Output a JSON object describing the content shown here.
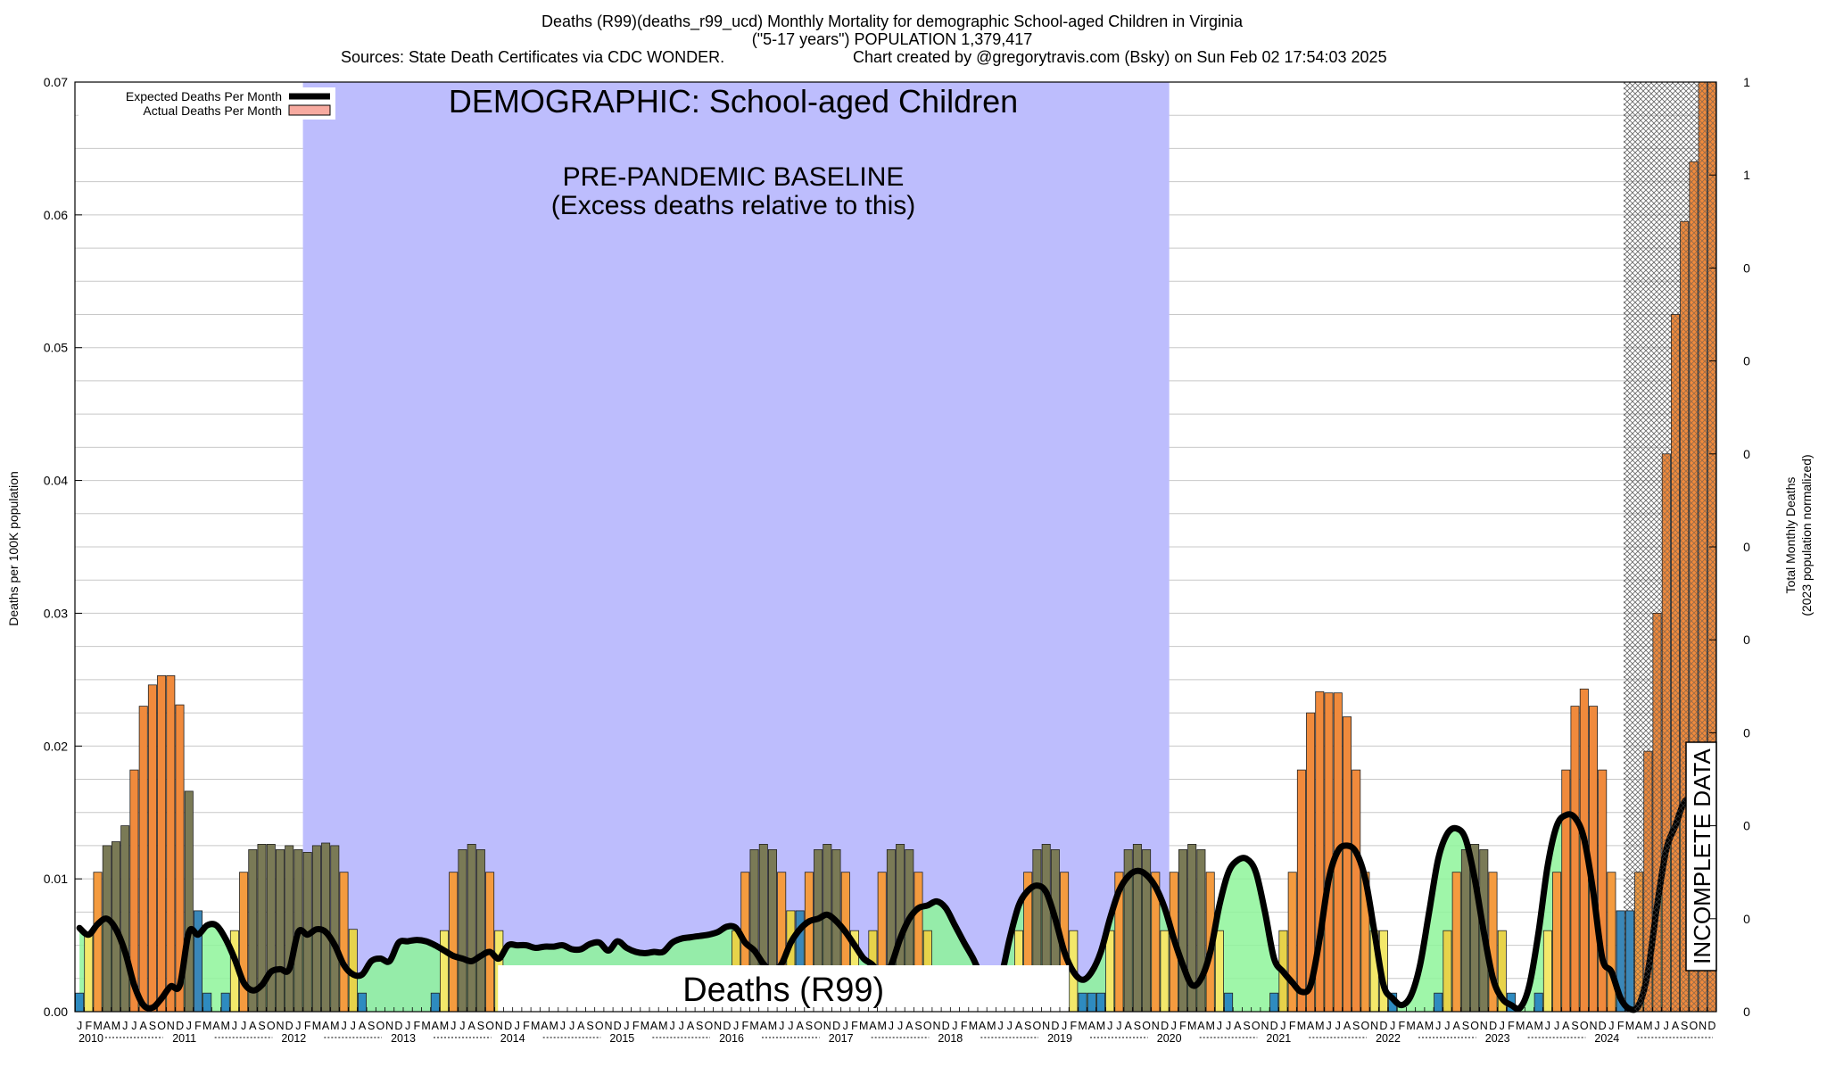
{
  "chart_data": {
    "type": "bar",
    "title_lines": [
      "Deaths (R99)(deaths_r99_ucd)  Monthly Mortality for demographic School-aged Children in Virginia",
      "(\"5-17 years\") POPULATION 1,379,417",
      "Sources: State Death Certificates via CDC WONDER.",
      "Chart created by @gregorytravis.com (Bsky) on Sun Feb 02 17:54:03 2025"
    ],
    "ylabel": "Deaths per 100K population",
    "y2label_lines": [
      "Total Monthly Deaths",
      "(2023 population normalized)"
    ],
    "ylim": [
      0,
      0.07
    ],
    "yticks": [
      "0.00",
      "0.01",
      "0.02",
      "0.03",
      "0.04",
      "0.05",
      "0.06",
      "0.07"
    ],
    "y2ticks": [
      "0",
      "0",
      "0",
      "0",
      "0",
      "0",
      "0",
      "0",
      "0",
      "1",
      "1",
      "1",
      "1",
      "1",
      "1"
    ],
    "grid": true,
    "legend_position": "top-left",
    "legend": [
      "Expected Deaths Per Month",
      "Actual Deaths Per Month"
    ],
    "month_letters": [
      "J",
      "F",
      "M",
      "A",
      "M",
      "J",
      "J",
      "A",
      "S",
      "O",
      "N",
      "D"
    ],
    "years": [
      "2010",
      "2011",
      "2012",
      "2013",
      "2014",
      "2015",
      "2016",
      "2017",
      "2018",
      "2019",
      "2020",
      "2021",
      "2022",
      "2023",
      "2024"
    ],
    "annotations": {
      "demographic": "DEMOGRAPHIC: School-aged Children",
      "baseline_line1": "PRE-PANDEMIC BASELINE",
      "baseline_line2": "(Excess deaths relative to this)",
      "cause_label": "Deaths (R99)",
      "incomplete": "INCOMPLETE DATA"
    },
    "baseline_period": [
      "2012-02",
      "2019-12"
    ],
    "incomplete_period": [
      "2024-04",
      "2024-12"
    ],
    "actual_deaths": [
      0.0014,
      0.006,
      0.0105,
      0.0125,
      0.0128,
      0.014,
      0.0182,
      0.023,
      0.0246,
      0.0253,
      0.0253,
      0.0231,
      0.0166,
      0.0076,
      0.0014,
      0,
      0.0014,
      0.0061,
      0.0105,
      0.0122,
      0.0126,
      0.0126,
      0.0122,
      0.0125,
      0.0122,
      0.012,
      0.0125,
      0.0127,
      0.0125,
      0.0105,
      0.0062,
      0.0014,
      0,
      0,
      0,
      0,
      0,
      0,
      0,
      0.0014,
      0.0061,
      0.0105,
      0.0122,
      0.0126,
      0.0122,
      0.0105,
      0.0061,
      0,
      0,
      0,
      0,
      0,
      0,
      0,
      0,
      0,
      0,
      0,
      0,
      0,
      0,
      0,
      0,
      0,
      0,
      0,
      0,
      0,
      0,
      0,
      0,
      0,
      0.0061,
      0.0105,
      0.0122,
      0.0126,
      0.0122,
      0.0105,
      0.0076,
      0.0076,
      0.0105,
      0.0122,
      0.0126,
      0.0122,
      0.0105,
      0.0061,
      0.003,
      0.0061,
      0.0105,
      0.0122,
      0.0126,
      0.0122,
      0.0105,
      0.0061,
      0,
      0,
      0,
      0,
      0,
      0,
      0,
      0,
      0,
      0.0061,
      0.0105,
      0.0122,
      0.0126,
      0.0122,
      0.0105,
      0.0061,
      0.0014,
      0.0014,
      0.0014,
      0.0061,
      0.0105,
      0.0122,
      0.0126,
      0.0122,
      0.0105,
      0.0061,
      0.0105,
      0.0122,
      0.0126,
      0.0122,
      0.0105,
      0.0061,
      0.0014,
      0,
      0,
      0,
      0,
      0.0014,
      0.0061,
      0.0105,
      0.0182,
      0.0225,
      0.0241,
      0.024,
      0.024,
      0.0222,
      0.0182,
      0.0105,
      0.0061,
      0.0061,
      0.0014,
      0,
      0,
      0,
      0,
      0.0014,
      0.0061,
      0.0105,
      0.0122,
      0.0126,
      0.0122,
      0.0105,
      0.0061,
      0.0014,
      0,
      0,
      0.0014,
      0.0061,
      0.0105,
      0.0182,
      0.023,
      0.0243,
      0.023,
      0.0182,
      0.0105,
      0.0076,
      0.0076,
      0.0105,
      0.0196,
      0.03,
      0.042,
      0.0525,
      0.0595,
      0.064,
      0.07,
      0.07
    ],
    "expected_deaths": [
      0.0063,
      0.0058,
      0.0066,
      0.007,
      0.0062,
      0.0045,
      0.002,
      0.0005,
      0.0003,
      0.001,
      0.0019,
      0.002,
      0.006,
      0.0058,
      0.0065,
      0.0065,
      0.0055,
      0.004,
      0.0022,
      0.0016,
      0.002,
      0.003,
      0.0032,
      0.0032,
      0.006,
      0.0058,
      0.0062,
      0.006,
      0.005,
      0.0035,
      0.0028,
      0.0028,
      0.0038,
      0.004,
      0.0038,
      0.0052,
      0.0053,
      0.0054,
      0.0053,
      0.005,
      0.0046,
      0.0042,
      0.004,
      0.0038,
      0.0042,
      0.0045,
      0.004,
      0.005,
      0.005,
      0.005,
      0.0048,
      0.0049,
      0.0049,
      0.005,
      0.0047,
      0.0047,
      0.0051,
      0.0052,
      0.0046,
      0.0053,
      0.0048,
      0.0045,
      0.0044,
      0.0045,
      0.0045,
      0.0052,
      0.0055,
      0.0056,
      0.0057,
      0.0058,
      0.006,
      0.0064,
      0.0063,
      0.0052,
      0.0046,
      0.0036,
      0.003,
      0.0036,
      0.0052,
      0.0062,
      0.0068,
      0.007,
      0.0073,
      0.0068,
      0.006,
      0.005,
      0.004,
      0.0035,
      0.0025,
      0.0035,
      0.0055,
      0.007,
      0.0078,
      0.008,
      0.0083,
      0.0078,
      0.0065,
      0.0052,
      0.004,
      0.0025,
      0.0015,
      0.0025,
      0.0055,
      0.008,
      0.0091,
      0.0095,
      0.009,
      0.007,
      0.0045,
      0.003,
      0.0024,
      0.003,
      0.0045,
      0.007,
      0.0091,
      0.0102,
      0.0106,
      0.0103,
      0.0094,
      0.0078,
      0.0055,
      0.0035,
      0.002,
      0.0025,
      0.0045,
      0.008,
      0.0105,
      0.0114,
      0.0115,
      0.0105,
      0.0075,
      0.004,
      0.003,
      0.0022,
      0.0015,
      0.002,
      0.0055,
      0.01,
      0.0121,
      0.0125,
      0.012,
      0.01,
      0.006,
      0.002,
      0.001,
      0.0005,
      0.0012,
      0.0035,
      0.0075,
      0.0115,
      0.0134,
      0.0138,
      0.013,
      0.01,
      0.006,
      0.0025,
      0.001,
      0.0005,
      0.0003,
      0.002,
      0.006,
      0.011,
      0.014,
      0.0148,
      0.0146,
      0.013,
      0.009,
      0.004,
      0.003,
      0.001,
      0.0002,
      0.0005,
      0.003,
      0.008,
      0.0122,
      0.014,
      0.0158,
      0.016,
      null,
      null
    ]
  }
}
